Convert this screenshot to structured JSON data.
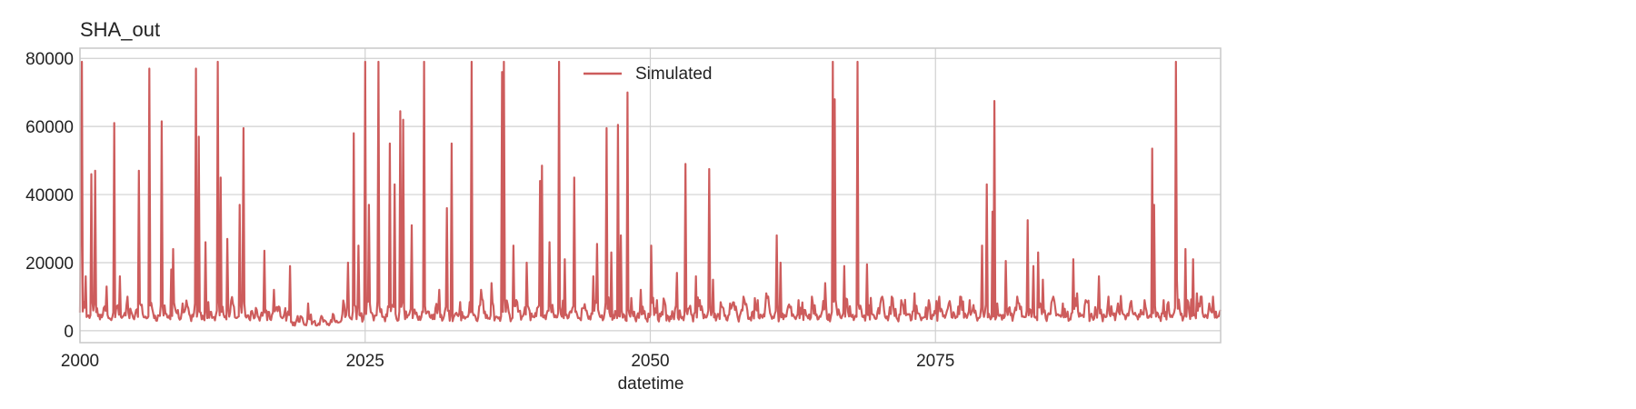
{
  "chart_data": {
    "type": "line",
    "title": "SHA_out",
    "xlabel": "datetime",
    "ylabel": "",
    "xlim": [
      2000,
      2100
    ],
    "ylim": [
      -3500,
      83000
    ],
    "x_ticks": [
      2000,
      2025,
      2050,
      2075
    ],
    "x_tick_labels": [
      "2000",
      "2025",
      "2050",
      "2075"
    ],
    "y_ticks": [
      0,
      20000,
      40000,
      60000,
      80000
    ],
    "y_tick_labels": [
      "0",
      "20000",
      "40000",
      "60000",
      "80000"
    ],
    "grid": true,
    "legend": {
      "position": "top-center"
    },
    "series": [
      {
        "name": "Simulated",
        "color": "#cd5c5c",
        "baseline_range": [
          1000,
          12000
        ],
        "peaks": [
          [
            2000.1,
            37000
          ],
          [
            2000.2,
            79000
          ],
          [
            2000.5,
            16000
          ],
          [
            2001.0,
            46000
          ],
          [
            2001.3,
            47000
          ],
          [
            2002.3,
            13000
          ],
          [
            2003.0,
            61000
          ],
          [
            2003.5,
            16000
          ],
          [
            2004.2,
            10000
          ],
          [
            2005.2,
            47000
          ],
          [
            2006.1,
            77000
          ],
          [
            2007.2,
            61500
          ],
          [
            2008.0,
            18000
          ],
          [
            2008.2,
            24000
          ],
          [
            2009.0,
            8000
          ],
          [
            2010.2,
            77000
          ],
          [
            2010.4,
            57000
          ],
          [
            2011.0,
            26000
          ],
          [
            2012.1,
            79000
          ],
          [
            2012.3,
            45000
          ],
          [
            2012.9,
            27000
          ],
          [
            2014.0,
            37000
          ],
          [
            2014.3,
            59500
          ],
          [
            2016.2,
            23500
          ],
          [
            2017.0,
            12000
          ],
          [
            2018.4,
            19000
          ],
          [
            2020.0,
            8000
          ],
          [
            2023.5,
            20000
          ],
          [
            2024.0,
            58000
          ],
          [
            2024.4,
            25000
          ],
          [
            2025.0,
            79000
          ],
          [
            2025.3,
            37000
          ],
          [
            2026.2,
            79000
          ],
          [
            2027.2,
            55000
          ],
          [
            2027.6,
            43000
          ],
          [
            2028.1,
            64500
          ],
          [
            2028.3,
            62000
          ],
          [
            2029.1,
            31000
          ],
          [
            2030.2,
            79000
          ],
          [
            2031.5,
            12000
          ],
          [
            2032.2,
            36000
          ],
          [
            2032.6,
            55000
          ],
          [
            2034.3,
            79000
          ],
          [
            2035.2,
            12000
          ],
          [
            2036.1,
            14000
          ],
          [
            2037.0,
            76000
          ],
          [
            2037.2,
            79000
          ],
          [
            2038.0,
            25000
          ],
          [
            2039.2,
            20000
          ],
          [
            2040.3,
            44000
          ],
          [
            2040.5,
            48500
          ],
          [
            2041.2,
            26000
          ],
          [
            2042.0,
            79000
          ],
          [
            2042.5,
            21000
          ],
          [
            2043.3,
            45000
          ],
          [
            2045.0,
            16000
          ],
          [
            2045.3,
            25500
          ],
          [
            2046.2,
            59500
          ],
          [
            2046.6,
            23000
          ],
          [
            2047.2,
            60500
          ],
          [
            2047.4,
            28000
          ],
          [
            2048.0,
            70000
          ],
          [
            2049.2,
            12000
          ],
          [
            2050.1,
            25000
          ],
          [
            2050.6,
            9000
          ],
          [
            2052.3,
            17000
          ],
          [
            2053.1,
            49000
          ],
          [
            2054.0,
            16000
          ],
          [
            2055.2,
            47500
          ],
          [
            2055.5,
            15000
          ],
          [
            2057.0,
            8000
          ],
          [
            2058.2,
            10000
          ],
          [
            2059.4,
            9000
          ],
          [
            2060.2,
            11000
          ],
          [
            2061.1,
            28000
          ],
          [
            2061.4,
            20000
          ],
          [
            2063.0,
            9000
          ],
          [
            2064.2,
            10000
          ],
          [
            2065.3,
            14000
          ],
          [
            2066.0,
            79000
          ],
          [
            2066.2,
            68000
          ],
          [
            2067.0,
            19000
          ],
          [
            2068.2,
            79000
          ],
          [
            2069.0,
            19500
          ],
          [
            2070.3,
            10000
          ],
          [
            2071.2,
            10000
          ],
          [
            2072.0,
            9000
          ],
          [
            2073.2,
            11000
          ],
          [
            2074.4,
            9000
          ],
          [
            2075.3,
            10000
          ],
          [
            2076.2,
            8000
          ],
          [
            2077.2,
            10000
          ],
          [
            2078.0,
            9000
          ],
          [
            2079.1,
            25000
          ],
          [
            2079.5,
            43000
          ],
          [
            2080.0,
            35000
          ],
          [
            2080.2,
            67500
          ],
          [
            2081.2,
            20500
          ],
          [
            2082.2,
            10000
          ],
          [
            2083.1,
            32500
          ],
          [
            2083.6,
            19000
          ],
          [
            2084.0,
            23000
          ],
          [
            2084.4,
            15000
          ],
          [
            2085.3,
            10000
          ],
          [
            2086.2,
            8000
          ],
          [
            2087.1,
            21000
          ],
          [
            2087.4,
            11000
          ],
          [
            2088.2,
            9000
          ],
          [
            2089.3,
            16000
          ],
          [
            2090.2,
            10000
          ],
          [
            2091.0,
            8000
          ],
          [
            2092.1,
            8000
          ],
          [
            2093.3,
            9000
          ],
          [
            2094.0,
            53500
          ],
          [
            2094.2,
            37000
          ],
          [
            2095.0,
            9000
          ],
          [
            2096.2,
            10000
          ],
          [
            2097.1,
            9000
          ],
          [
            2098.3,
            10000
          ],
          [
            2099.0,
            8000
          ],
          [
            2099.3,
            10000
          ]
        ],
        "additional_peaks": [
          [
            2096.1,
            79000
          ],
          [
            2096.2,
            15000
          ],
          [
            2096.9,
            24000
          ],
          [
            2097.6,
            21000
          ],
          [
            2097.9,
            11000
          ],
          [
            2098.3,
            8000
          ]
        ]
      }
    ]
  }
}
